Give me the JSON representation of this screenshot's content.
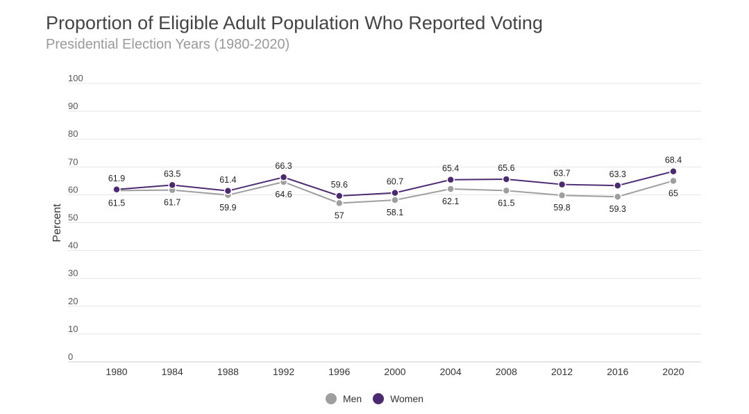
{
  "chart_data": {
    "type": "line",
    "title": "Proportion of Eligible Adult Population Who Reported Voting",
    "subtitle": "Presidential Election Years (1980-2020)",
    "xlabel": "",
    "ylabel": "Percent",
    "ylim": [
      0,
      100
    ],
    "yticks": [
      0,
      10,
      20,
      30,
      40,
      50,
      60,
      70,
      80,
      90,
      100
    ],
    "grid": true,
    "legend_position": "bottom",
    "categories": [
      "1980",
      "1984",
      "1988",
      "1992",
      "1996",
      "2000",
      "2004",
      "2008",
      "2012",
      "2016",
      "2020"
    ],
    "series": [
      {
        "name": "Men",
        "color": "#9e9e9e",
        "values": [
          61.5,
          61.7,
          59.9,
          64.6,
          57,
          58.1,
          62.1,
          61.5,
          59.8,
          59.3,
          65
        ],
        "labels": [
          "61.5",
          "61.7",
          "59.9",
          "64.6",
          "57",
          "58.1",
          "62.1",
          "61.5",
          "59.8",
          "59.3",
          "65"
        ]
      },
      {
        "name": "Women",
        "color": "#4b2a71",
        "values": [
          61.9,
          63.5,
          61.4,
          66.3,
          59.6,
          60.7,
          65.4,
          65.6,
          63.7,
          63.3,
          68.4
        ],
        "labels": [
          "61.9",
          "63.5",
          "61.4",
          "66.3",
          "59.6",
          "60.7",
          "65.4",
          "65.6",
          "63.7",
          "63.3",
          "68.4"
        ]
      }
    ]
  }
}
